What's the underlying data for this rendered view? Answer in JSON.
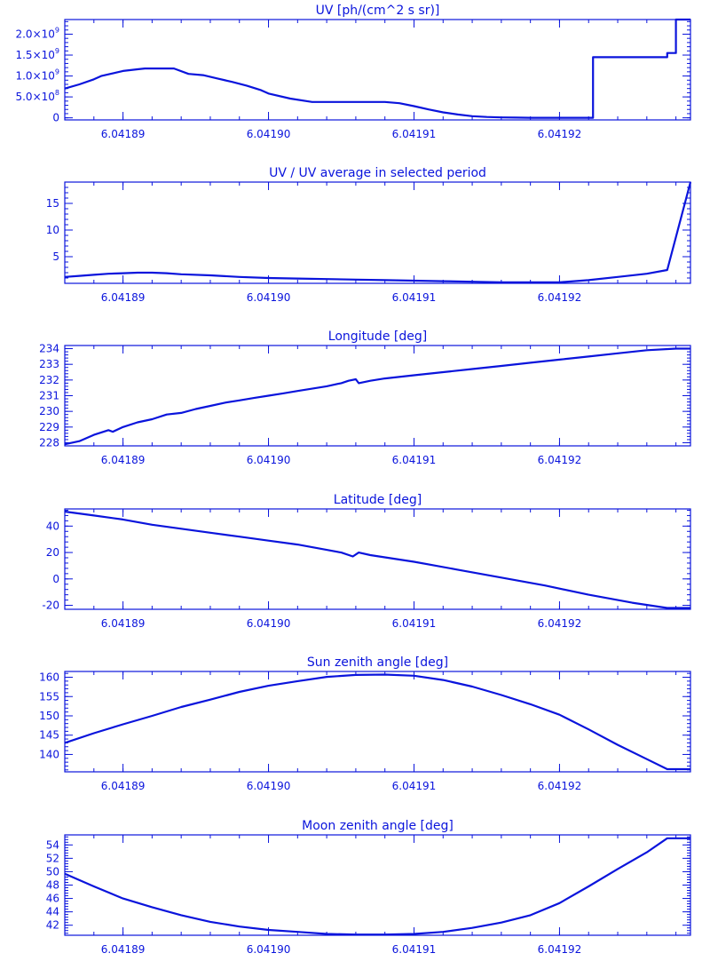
{
  "colors": {
    "line": "#0a14dc",
    "background": "#ffffff"
  },
  "chart_data": [
    {
      "type": "line",
      "title": "UV [ph/(cm^2 s sr)]",
      "xlim": [
        6.041886,
        6.041929
      ],
      "ylim": [
        -50000000.0,
        2350000000.0
      ],
      "xticks": [
        6.04189,
        6.0419,
        6.04191,
        6.04192
      ],
      "xticklabels": [
        "6.04189",
        "6.04190",
        "6.04191",
        "6.04192"
      ],
      "yticks": [
        0,
        500000000.0,
        1000000000.0,
        1500000000.0,
        2000000000.0
      ],
      "yticklabels": [
        {
          "base": "0",
          "exp": ""
        },
        {
          "base": "5.0×10",
          "exp": "8"
        },
        {
          "base": "1.0×10",
          "exp": "9"
        },
        {
          "base": "1.5×10",
          "exp": "9"
        },
        {
          "base": "2.0×10",
          "exp": "9"
        }
      ],
      "series": [
        {
          "x": [
            6.041886,
            6.041887,
            6.041888,
            6.0418885,
            6.0418895,
            6.04189,
            6.041891,
            6.0418915,
            6.0418925,
            6.0418935,
            6.0418945,
            6.0418955,
            6.0418965,
            6.0418975,
            6.0418985,
            6.0418995,
            6.0419,
            6.0419015,
            6.041903,
            6.041904,
            6.0419045,
            6.041905,
            6.0419055,
            6.041906,
            6.041907,
            6.041908,
            6.041909,
            6.04191,
            6.041911,
            6.041912,
            6.041913,
            6.041914,
            6.041915,
            6.041916,
            6.041917,
            6.041918,
            6.041919,
            6.04192,
            6.041921,
            6.041922,
            6.0419223,
            6.0419223,
            6.041925,
            6.041927,
            6.0419274,
            6.0419274,
            6.041928,
            6.041928,
            6.041929
          ],
          "y": [
            700000000.0,
            800000000.0,
            920000000.0,
            1000000000.0,
            1080000000.0,
            1120000000.0,
            1160000000.0,
            1180000000.0,
            1180000000.0,
            1180000000.0,
            1050000000.0,
            1020000000.0,
            940000000.0,
            860000000.0,
            770000000.0,
            660000000.0,
            580000000.0,
            460000000.0,
            380000000.0,
            380000000.0,
            380000000.0,
            380000000.0,
            380000000.0,
            380000000.0,
            380000000.0,
            380000000.0,
            350000000.0,
            280000000.0,
            200000000.0,
            130000000.0,
            80000000.0,
            40000000.0,
            20000000.0,
            10000000.0,
            5000000.0,
            2000000.0,
            0.0,
            0.0,
            0.0,
            0.0,
            0.0,
            1450000000.0,
            1450000000.0,
            1450000000.0,
            1450000000.0,
            1550000000.0,
            1550000000.0,
            2350000000.0,
            2350000000.0
          ]
        }
      ]
    },
    {
      "type": "line",
      "title": "UV / UV average in selected period",
      "xlim": [
        6.041886,
        6.041929
      ],
      "ylim": [
        0,
        19
      ],
      "xticks": [
        6.04189,
        6.0419,
        6.04191,
        6.04192
      ],
      "xticklabels": [
        "6.04189",
        "6.04190",
        "6.04191",
        "6.04192"
      ],
      "yticks": [
        5,
        10,
        15
      ],
      "yticklabels": [
        {
          "base": "5",
          "exp": ""
        },
        {
          "base": "10",
          "exp": ""
        },
        {
          "base": "15",
          "exp": ""
        }
      ],
      "series": [
        {
          "x": [
            6.041886,
            6.041887,
            6.041888,
            6.041889,
            6.04189,
            6.041891,
            6.041892,
            6.041893,
            6.041894,
            6.041896,
            6.041898,
            6.0419,
            6.041902,
            6.041904,
            6.041906,
            6.041908,
            6.04191,
            6.041912,
            6.041914,
            6.041916,
            6.041918,
            6.04192,
            6.041922,
            6.041924,
            6.041926,
            6.0419274,
            6.041929
          ],
          "y": [
            1.2,
            1.4,
            1.6,
            1.8,
            1.9,
            2.0,
            2.0,
            1.9,
            1.7,
            1.5,
            1.2,
            1.0,
            0.9,
            0.8,
            0.7,
            0.6,
            0.5,
            0.4,
            0.3,
            0.2,
            0.2,
            0.2,
            0.6,
            1.2,
            1.8,
            2.5,
            19
          ]
        }
      ]
    },
    {
      "type": "line",
      "title": "Longitude [deg]",
      "xlim": [
        6.041886,
        6.041929
      ],
      "ylim": [
        227.8,
        234.2
      ],
      "xticks": [
        6.04189,
        6.0419,
        6.04191,
        6.04192
      ],
      "xticklabels": [
        "6.04189",
        "6.04190",
        "6.04191",
        "6.04192"
      ],
      "yticks": [
        228,
        229,
        230,
        231,
        232,
        233,
        234
      ],
      "yticklabels": [
        {
          "base": "228",
          "exp": ""
        },
        {
          "base": "229",
          "exp": ""
        },
        {
          "base": "230",
          "exp": ""
        },
        {
          "base": "231",
          "exp": ""
        },
        {
          "base": "232",
          "exp": ""
        },
        {
          "base": "233",
          "exp": ""
        },
        {
          "base": "234",
          "exp": ""
        }
      ],
      "series": [
        {
          "x": [
            6.041886,
            6.041887,
            6.041888,
            6.041889,
            6.0418893,
            6.04189,
            6.041891,
            6.041892,
            6.041893,
            6.041894,
            6.041895,
            6.041896,
            6.041897,
            6.041898,
            6.041899,
            6.0419,
            6.041901,
            6.041902,
            6.041903,
            6.041904,
            6.041905,
            6.0419055,
            6.041906,
            6.0419062,
            6.041907,
            6.041908,
            6.04191,
            6.041912,
            6.041914,
            6.041916,
            6.041918,
            6.04192,
            6.041922,
            6.041924,
            6.041926,
            6.041928,
            6.041929
          ],
          "y": [
            227.9,
            228.1,
            228.5,
            228.8,
            228.7,
            229.0,
            229.3,
            229.5,
            229.8,
            229.9,
            230.15,
            230.35,
            230.55,
            230.7,
            230.85,
            231.0,
            231.15,
            231.3,
            231.45,
            231.6,
            231.8,
            231.95,
            232.05,
            231.8,
            231.95,
            232.1,
            232.3,
            232.5,
            232.7,
            232.9,
            233.1,
            233.3,
            233.5,
            233.7,
            233.9,
            234.0,
            234.0
          ]
        }
      ]
    },
    {
      "type": "line",
      "title": "Latitude [deg]",
      "xlim": [
        6.041886,
        6.041929
      ],
      "ylim": [
        -23,
        53
      ],
      "xticks": [
        6.04189,
        6.0419,
        6.04191,
        6.04192
      ],
      "xticklabels": [
        "6.04189",
        "6.04190",
        "6.04191",
        "6.04192"
      ],
      "yticks": [
        -20,
        0,
        20,
        40
      ],
      "yticklabels": [
        {
          "base": "-20",
          "exp": ""
        },
        {
          "base": "0",
          "exp": ""
        },
        {
          "base": "20",
          "exp": ""
        },
        {
          "base": "40",
          "exp": ""
        }
      ],
      "series": [
        {
          "x": [
            6.041886,
            6.041888,
            6.04189,
            6.041892,
            6.041894,
            6.041896,
            6.041898,
            6.0419,
            6.041902,
            6.041904,
            6.041905,
            6.0419058,
            6.0419062,
            6.041907,
            6.04191,
            6.041913,
            6.041916,
            6.041919,
            6.041922,
            6.041925,
            6.0419274,
            6.041929
          ],
          "y": [
            51,
            48,
            45,
            41,
            38,
            35,
            32,
            29,
            26,
            22,
            20,
            17,
            20,
            18,
            13,
            7,
            1,
            -5,
            -12,
            -18,
            -22,
            -22
          ]
        }
      ]
    },
    {
      "type": "line",
      "title": "Sun zenith angle [deg]",
      "xlim": [
        6.041886,
        6.041929
      ],
      "ylim": [
        135.5,
        161.5
      ],
      "xticks": [
        6.04189,
        6.0419,
        6.04191,
        6.04192
      ],
      "xticklabels": [
        "6.04189",
        "6.04190",
        "6.04191",
        "6.04192"
      ],
      "yticks": [
        140,
        145,
        150,
        155,
        160
      ],
      "yticklabels": [
        {
          "base": "140",
          "exp": ""
        },
        {
          "base": "145",
          "exp": ""
        },
        {
          "base": "150",
          "exp": ""
        },
        {
          "base": "155",
          "exp": ""
        },
        {
          "base": "160",
          "exp": ""
        }
      ],
      "series": [
        {
          "x": [
            6.041886,
            6.041888,
            6.04189,
            6.041892,
            6.041894,
            6.041896,
            6.041898,
            6.0419,
            6.041902,
            6.041904,
            6.041906,
            6.041908,
            6.04191,
            6.041912,
            6.041914,
            6.041916,
            6.041918,
            6.04192,
            6.041922,
            6.041924,
            6.041926,
            6.0419274,
            6.041929
          ],
          "y": [
            143,
            145.5,
            147.8,
            150.0,
            152.3,
            154.2,
            156.2,
            157.8,
            159.0,
            160.1,
            160.6,
            160.7,
            160.4,
            159.3,
            157.6,
            155.4,
            153.0,
            150.3,
            146.5,
            142.5,
            138.8,
            136.2,
            136.2
          ]
        }
      ]
    },
    {
      "type": "line",
      "title": "Moon zenith angle [deg]",
      "xlim": [
        6.041886,
        6.041929
      ],
      "ylim": [
        40.5,
        55.5
      ],
      "xticks": [
        6.04189,
        6.0419,
        6.04191,
        6.04192
      ],
      "xticklabels": [
        "6.04189",
        "6.04190",
        "6.04191",
        "6.04192"
      ],
      "yticks": [
        42,
        44,
        46,
        48,
        50,
        52,
        54
      ],
      "yticklabels": [
        {
          "base": "42",
          "exp": ""
        },
        {
          "base": "44",
          "exp": ""
        },
        {
          "base": "46",
          "exp": ""
        },
        {
          "base": "48",
          "exp": ""
        },
        {
          "base": "50",
          "exp": ""
        },
        {
          "base": "52",
          "exp": ""
        },
        {
          "base": "54",
          "exp": ""
        }
      ],
      "series": [
        {
          "x": [
            6.041886,
            6.041888,
            6.04189,
            6.041892,
            6.041894,
            6.041896,
            6.041898,
            6.0419,
            6.041902,
            6.041904,
            6.041906,
            6.041908,
            6.04191,
            6.041912,
            6.041914,
            6.041916,
            6.041918,
            6.04192,
            6.041922,
            6.041924,
            6.041926,
            6.0419274,
            6.041929
          ],
          "y": [
            49.7,
            47.8,
            46.0,
            44.7,
            43.5,
            42.5,
            41.8,
            41.3,
            41.0,
            40.7,
            40.6,
            40.6,
            40.7,
            41.0,
            41.6,
            42.4,
            43.5,
            45.3,
            47.8,
            50.4,
            52.9,
            55.0,
            55.0
          ]
        }
      ]
    }
  ]
}
